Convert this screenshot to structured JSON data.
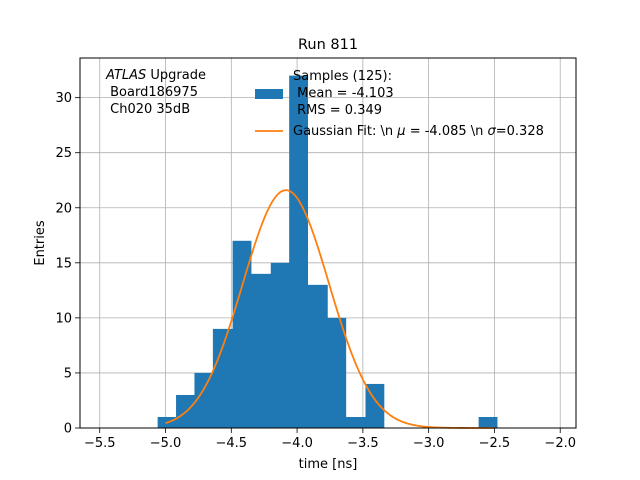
{
  "chart_data": {
    "type": "bar",
    "title": "Run 811",
    "xlabel": "time [ns]",
    "ylabel": "Entries",
    "xlim": [
      -5.65,
      -1.88
    ],
    "ylim": [
      0,
      33.6
    ],
    "grid": true,
    "x_ticks": [
      -5.5,
      -5.0,
      -4.5,
      -4.0,
      -3.5,
      -3.0,
      -2.5,
      -2.0
    ],
    "x_tick_labels": [
      "−5.5",
      "−5.0",
      "−4.5",
      "−4.0",
      "−3.5",
      "−3.0",
      "−2.5",
      "−2.0"
    ],
    "y_ticks": [
      0,
      5,
      10,
      15,
      20,
      25,
      30
    ],
    "y_tick_labels": [
      "0",
      "5",
      "10",
      "15",
      "20",
      "25",
      "30"
    ],
    "bar_color": "#1f77b4",
    "fit_color": "#ff7f0e",
    "bins": [
      {
        "x0": -5.06,
        "x1": -4.92,
        "count": 1
      },
      {
        "x0": -4.92,
        "x1": -4.78,
        "count": 3
      },
      {
        "x0": -4.78,
        "x1": -4.64,
        "count": 5
      },
      {
        "x0": -4.64,
        "x1": -4.49,
        "count": 9
      },
      {
        "x0": -4.49,
        "x1": -4.35,
        "count": 17
      },
      {
        "x0": -4.35,
        "x1": -4.2,
        "count": 14
      },
      {
        "x0": -4.2,
        "x1": -4.06,
        "count": 15
      },
      {
        "x0": -4.06,
        "x1": -3.92,
        "count": 32
      },
      {
        "x0": -3.92,
        "x1": -3.77,
        "count": 13
      },
      {
        "x0": -3.77,
        "x1": -3.63,
        "count": 10
      },
      {
        "x0": -3.63,
        "x1": -3.48,
        "count": 1
      },
      {
        "x0": -3.48,
        "x1": -3.34,
        "count": 4
      },
      {
        "x0": -2.62,
        "x1": -2.48,
        "count": 1
      }
    ],
    "fit": {
      "mu": -4.085,
      "sigma": 0.328,
      "amplitude": 21.6,
      "x_from": -5.0,
      "x_to": -2.5
    },
    "legend": {
      "placement": "top-right",
      "hist_label_lines": [
        "Samples (125):",
        " Mean = -4.103",
        " RMS = 0.349"
      ],
      "fit_label_pre": "Gaussian Fit: \\n ",
      "fit_mu_symbol": "μ",
      "fit_mu_text": " = -4.085 \\n ",
      "fit_sigma_symbol": "σ",
      "fit_sigma_text": "=0.328"
    },
    "annotation": {
      "italic": "ATLAS",
      "rest": " Upgrade",
      "line2": " Board186975",
      "line3": " Ch020 35dB"
    }
  }
}
